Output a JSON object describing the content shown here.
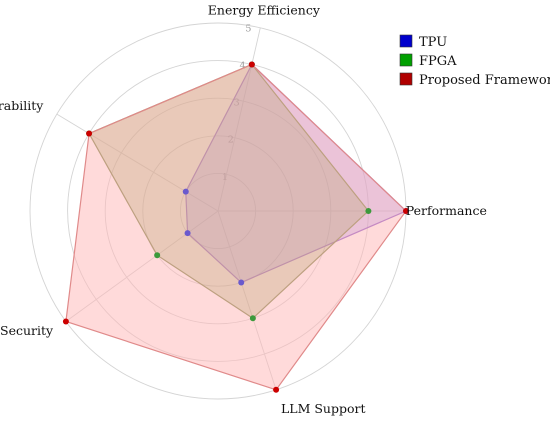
{
  "chart_data": {
    "type": "radar",
    "axes": [
      "Performance",
      "Energy Efficiency",
      "Reconfigurability",
      "Security",
      "LLM Support"
    ],
    "rmax": 5,
    "ticks": [
      "1",
      "2",
      "3",
      "4",
      "5"
    ],
    "grid": true,
    "legend_position": "top-right",
    "series": [
      {
        "name": "TPU",
        "values": [
          5,
          4,
          1,
          1,
          2
        ],
        "color": "#0000cc",
        "fill": "#7b68ee",
        "stroke": "#8a5fd0",
        "marker": "#6a5acd"
      },
      {
        "name": "FPGA",
        "values": [
          4,
          4,
          4,
          2,
          3
        ],
        "color": "#00a000",
        "fill": "#6b8e23",
        "stroke": "#7a8a4a",
        "marker": "#3c9a3c"
      },
      {
        "name": "Proposed Framework",
        "values": [
          5,
          4,
          4,
          5,
          5
        ],
        "color": "#b00000",
        "fill": "#ffb6b6",
        "stroke": "#e08a8a",
        "marker": "#cc0000"
      }
    ]
  }
}
